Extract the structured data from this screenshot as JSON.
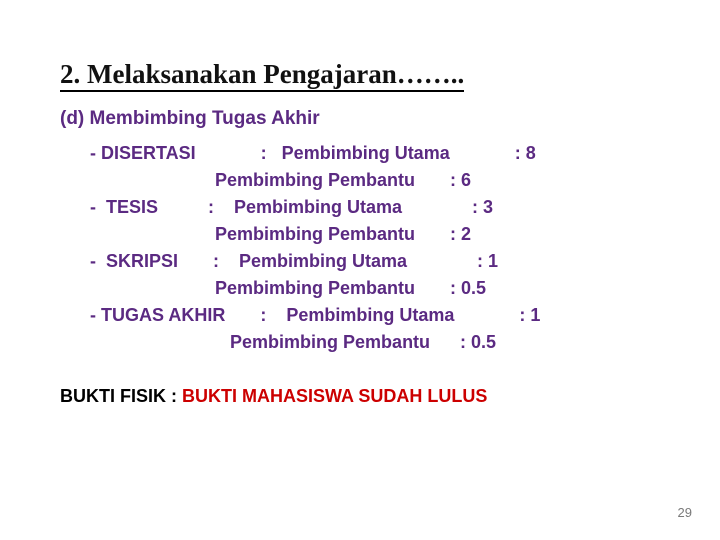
{
  "title": "2. Melaksanakan Pengajaran……..",
  "section_label": "(d) Membimbing Tugas Akhir",
  "colors": {
    "title": "#111111",
    "body": "#5b2a82",
    "bukti_label": "#000000",
    "bukti_value": "#cc0000",
    "background": "#ffffff",
    "slide_number": "#7a7a7a"
  },
  "fonts": {
    "title_pt": 27,
    "subhead_pt": 19,
    "body_pt": 18,
    "slide_number_pt": 13
  },
  "lines": [
    "- DISERTASI             :   Pembimbing Utama             : 8",
    "                         Pembimbing Pembantu       : 6",
    "-  TESIS          :    Pembimbing Utama              : 3",
    "                         Pembimbing Pembantu       : 2",
    "-  SKRIPSI       :    Pembimbing Utama              : 1",
    "                         Pembimbing Pembantu       : 0.5",
    "- TUGAS AKHIR       :    Pembimbing Utama             : 1",
    "                            Pembimbing Pembantu      : 0.5"
  ],
  "bukti": {
    "label": "BUKTI FISIK : ",
    "value": "BUKTI MAHASISWA SUDAH LULUS"
  },
  "slide_number": "29"
}
